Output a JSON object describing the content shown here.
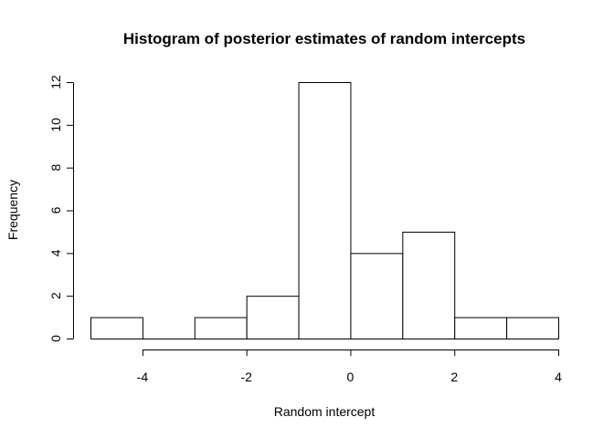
{
  "chart_data": {
    "type": "bar",
    "title": "Histogram of posterior estimates of random intercepts",
    "xlabel": "Random intercept",
    "ylabel": "Frequency",
    "bins": [
      {
        "start": -5,
        "end": -4,
        "count": 1
      },
      {
        "start": -4,
        "end": -3,
        "count": 0
      },
      {
        "start": -3,
        "end": -2,
        "count": 1
      },
      {
        "start": -2,
        "end": -1,
        "count": 2
      },
      {
        "start": -1,
        "end": 0,
        "count": 12
      },
      {
        "start": 0,
        "end": 1,
        "count": 4
      },
      {
        "start": 1,
        "end": 2,
        "count": 5
      },
      {
        "start": 2,
        "end": 3,
        "count": 1
      },
      {
        "start": 3,
        "end": 4,
        "count": 1
      }
    ],
    "x_ticks": [
      "-4",
      "-2",
      "0",
      "2",
      "4"
    ],
    "y_ticks": [
      "0",
      "2",
      "4",
      "6",
      "8",
      "10",
      "12"
    ],
    "xlim": [
      -5,
      4
    ],
    "ylim": [
      0,
      12
    ],
    "grid": false,
    "colors": {
      "bar_fill": "#ffffff",
      "bar_stroke": "#000000"
    }
  }
}
